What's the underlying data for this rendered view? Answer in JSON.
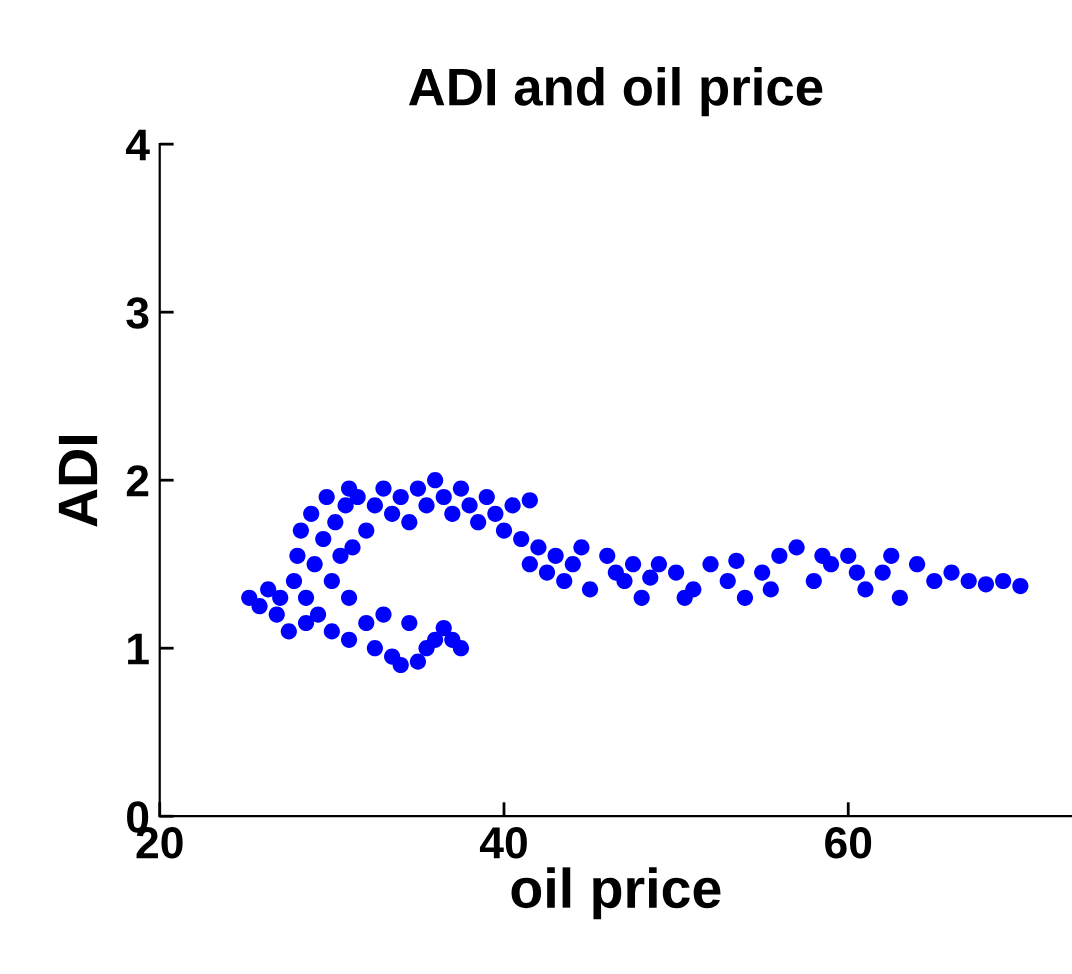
{
  "chart_data": {
    "type": "scatter",
    "title": "ADI and oil price",
    "xlabel": "oil price",
    "ylabel": "ADI",
    "xlim": [
      20,
      73
    ],
    "ylim": [
      0,
      4
    ],
    "xticks": [
      20,
      40,
      60
    ],
    "yticks": [
      0,
      1,
      2,
      3,
      4
    ],
    "grid": false,
    "marker": "circle",
    "series": [
      {
        "color": "#0000ff",
        "x": [
          25.2,
          25.8,
          26.3,
          26.8,
          27,
          27.5,
          27.8,
          28,
          28.2,
          28.5,
          28.8,
          29,
          29.2,
          29.5,
          29.7,
          30,
          30.2,
          30.5,
          30.8,
          31,
          31.2,
          28.5,
          30,
          31,
          32,
          33,
          32.5,
          33.5,
          34,
          35,
          35.5,
          36,
          36.5,
          37,
          37.5,
          34.5,
          32,
          32.5,
          33,
          33.5,
          34,
          34.5,
          35,
          35.5,
          36,
          36.5,
          37,
          37.5,
          38,
          38.5,
          39,
          39.5,
          40,
          40.5,
          41,
          41.5,
          31.5,
          31,
          41.5,
          42,
          42.5,
          43,
          43.5,
          44,
          45,
          46,
          47,
          48,
          49,
          50,
          51,
          52,
          53,
          54,
          55,
          56,
          57,
          58,
          59,
          60,
          61,
          62,
          63,
          64,
          65,
          66,
          67,
          68,
          69,
          70,
          46.5,
          48.5,
          50.5,
          53.5,
          55.5,
          58.5,
          60.5,
          62.5,
          44.5,
          47.5
        ],
        "values": [
          1.3,
          1.25,
          1.35,
          1.2,
          1.3,
          1.1,
          1.4,
          1.55,
          1.7,
          1.3,
          1.8,
          1.5,
          1.2,
          1.65,
          1.9,
          1.4,
          1.75,
          1.55,
          1.85,
          1.3,
          1.6,
          1.15,
          1.1,
          1.05,
          1.15,
          1.2,
          1.0,
          0.95,
          0.9,
          0.92,
          1.0,
          1.05,
          1.12,
          1.05,
          1.0,
          1.15,
          1.7,
          1.85,
          1.95,
          1.8,
          1.9,
          1.75,
          1.95,
          1.85,
          2.0,
          1.9,
          1.8,
          1.95,
          1.85,
          1.75,
          1.9,
          1.8,
          1.7,
          1.85,
          1.65,
          1.88,
          1.9,
          1.95,
          1.5,
          1.6,
          1.45,
          1.55,
          1.4,
          1.5,
          1.35,
          1.55,
          1.4,
          1.3,
          1.5,
          1.45,
          1.35,
          1.5,
          1.4,
          1.3,
          1.45,
          1.55,
          1.6,
          1.4,
          1.5,
          1.55,
          1.35,
          1.45,
          1.3,
          1.5,
          1.4,
          1.45,
          1.4,
          1.38,
          1.4,
          1.37,
          1.45,
          1.42,
          1.3,
          1.52,
          1.35,
          1.55,
          1.45,
          1.55,
          1.6,
          1.5
        ]
      }
    ]
  }
}
